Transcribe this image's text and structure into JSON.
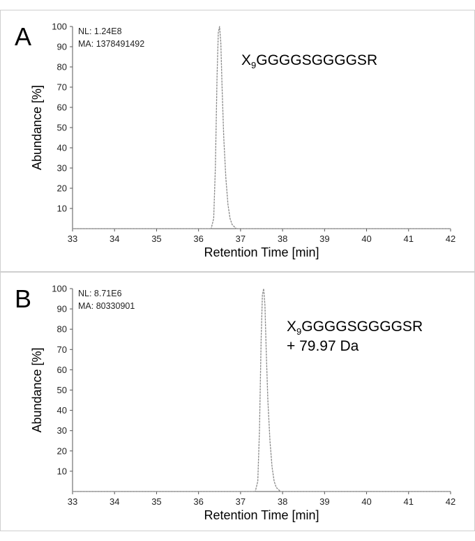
{
  "chart_data": [
    {
      "type": "line",
      "panel_label": "A",
      "annotations": {
        "nl": "NL: 1.24E8",
        "ma": "MA: 1378491492",
        "peptide_prefix": "X",
        "peptide_subscript": "9",
        "peptide_suffix": "GGGGSGGGGSR",
        "modification": ""
      },
      "xlabel": "Retention Time [min]",
      "ylabel": "Abundance [%]",
      "xlim": [
        33,
        42
      ],
      "ylim": [
        0,
        100
      ],
      "x_ticks": [
        "33",
        "34",
        "35",
        "36",
        "37",
        "38",
        "39",
        "40",
        "41",
        "42"
      ],
      "y_ticks": [
        "10",
        "20",
        "30",
        "40",
        "50",
        "60",
        "70",
        "80",
        "90",
        "100"
      ],
      "series": [
        {
          "x": [
            33.0,
            36.3,
            36.36,
            36.4,
            36.44,
            36.47,
            36.5,
            36.53,
            36.56,
            36.6,
            36.65,
            36.7,
            36.75,
            36.8,
            36.9,
            42.0
          ],
          "y": [
            0,
            0,
            5,
            30,
            75,
            97,
            100,
            92,
            70,
            45,
            25,
            12,
            5,
            2,
            0,
            0
          ]
        }
      ]
    },
    {
      "type": "line",
      "panel_label": "B",
      "annotations": {
        "nl": "NL: 8.71E6",
        "ma": "MA: 80330901",
        "peptide_prefix": "X",
        "peptide_subscript": "9",
        "peptide_suffix": "GGGGSGGGGSR",
        "modification": "+ 79.97 Da"
      },
      "xlabel": "Retention Time [min]",
      "ylabel": "Abundance [%]",
      "xlim": [
        33,
        42
      ],
      "ylim": [
        0,
        100
      ],
      "x_ticks": [
        "33",
        "34",
        "35",
        "36",
        "37",
        "38",
        "39",
        "40",
        "41",
        "42"
      ],
      "y_ticks": [
        "10",
        "20",
        "30",
        "40",
        "50",
        "60",
        "70",
        "80",
        "90",
        "100"
      ],
      "series": [
        {
          "x": [
            33.0,
            37.35,
            37.41,
            37.45,
            37.49,
            37.52,
            37.55,
            37.58,
            37.61,
            37.65,
            37.7,
            37.75,
            37.8,
            37.85,
            37.95,
            42.0
          ],
          "y": [
            0,
            0,
            5,
            30,
            75,
            97,
            100,
            92,
            70,
            45,
            25,
            12,
            5,
            2,
            0,
            0
          ]
        }
      ]
    }
  ],
  "colors": {
    "trace": "#8a8a8a",
    "axis": "#555555",
    "text": "#000000"
  }
}
